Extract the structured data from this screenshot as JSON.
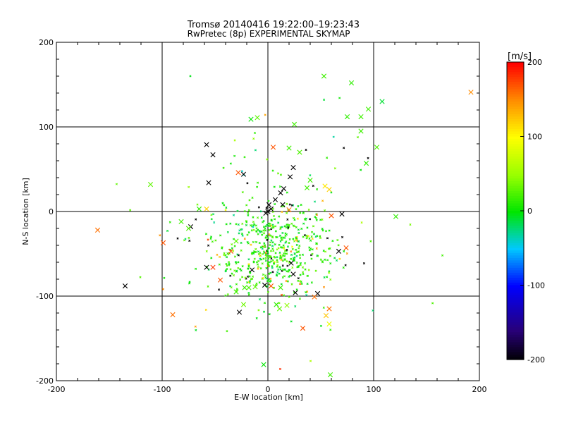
{
  "chart_data": {
    "type": "scatter",
    "title": "Tromsø 20140416 19:22:00–19:23:43",
    "subtitle": "RwPretec (8p) EXPERIMENTAL SKYMAP",
    "xlabel": "E-W location [km]",
    "ylabel": "N-S location [km]",
    "xlim": [
      -200,
      200
    ],
    "ylim": [
      -200,
      200
    ],
    "xticks": [
      -200,
      -100,
      0,
      100,
      200
    ],
    "yticks": [
      -200,
      -100,
      0,
      100,
      200
    ],
    "grid": "lines at -100, 0, 100",
    "colorbar": {
      "label": "[m/s]",
      "min": -200,
      "max": 200,
      "ticks": [
        200,
        100,
        0,
        -100,
        -200
      ]
    },
    "crosses": [
      [
        192,
        141,
        150
      ],
      [
        -161,
        -22,
        160
      ],
      [
        -99,
        -37,
        170
      ],
      [
        -90,
        -122,
        160
      ],
      [
        -28,
        46,
        170
      ],
      [
        -23,
        44,
        -200
      ],
      [
        -58,
        79,
        -200
      ],
      [
        -52,
        67,
        -200
      ],
      [
        -56,
        34,
        -200
      ],
      [
        -73,
        -18,
        -200
      ],
      [
        -58,
        -66,
        -200
      ],
      [
        -52,
        -66,
        180
      ],
      [
        -45,
        -81,
        170
      ],
      [
        -35,
        -47,
        175
      ],
      [
        -15,
        -69,
        -200
      ],
      [
        -27,
        -119,
        -200
      ],
      [
        5,
        76,
        170
      ],
      [
        24,
        52,
        -200
      ],
      [
        21,
        41,
        -200
      ],
      [
        12,
        22,
        -200
      ],
      [
        15,
        27,
        -200
      ],
      [
        7,
        14,
        -200
      ],
      [
        0,
        0,
        -200
      ],
      [
        3,
        3,
        -200
      ],
      [
        -2,
        -2,
        -200
      ],
      [
        1,
        8,
        -200
      ],
      [
        14,
        8,
        -200
      ],
      [
        20,
        2,
        160
      ],
      [
        60,
        -5,
        170
      ],
      [
        70,
        -3,
        -200
      ],
      [
        67,
        -47,
        -200
      ],
      [
        74,
        -43,
        170
      ],
      [
        22,
        -61,
        -200
      ],
      [
        24,
        -74,
        -200
      ],
      [
        26,
        -96,
        -200
      ],
      [
        47,
        -97,
        -200
      ],
      [
        44,
        -101,
        160
      ],
      [
        3,
        -88,
        170
      ],
      [
        -3,
        -87,
        -200
      ],
      [
        33,
        -138,
        170
      ],
      [
        58,
        -115,
        160
      ],
      [
        55,
        -123,
        125
      ],
      [
        58,
        -133,
        90
      ],
      [
        -135,
        -88,
        -200
      ],
      [
        -58,
        3,
        120
      ],
      [
        -10,
        111,
        30
      ],
      [
        54,
        30,
        110
      ],
      [
        58,
        26,
        120
      ],
      [
        -111,
        32,
        30
      ],
      [
        -16,
        109,
        0
      ],
      [
        53,
        160,
        20
      ],
      [
        79,
        152,
        15
      ],
      [
        108,
        130,
        -10
      ],
      [
        88,
        112,
        20
      ],
      [
        95,
        121,
        20
      ],
      [
        75,
        112,
        15
      ],
      [
        25,
        103,
        20
      ],
      [
        103,
        76,
        25
      ],
      [
        93,
        57,
        15
      ],
      [
        88,
        95,
        20
      ],
      [
        121,
        -6,
        15
      ],
      [
        40,
        37,
        20
      ],
      [
        -65,
        3,
        15
      ],
      [
        -18,
        -90,
        25
      ],
      [
        -12,
        -89,
        30
      ],
      [
        -22,
        -90,
        20
      ],
      [
        -30,
        -95,
        20
      ],
      [
        -23,
        -110,
        35
      ],
      [
        8,
        -110,
        15
      ],
      [
        12,
        -90,
        20
      ],
      [
        11,
        -115,
        30
      ],
      [
        18,
        -111,
        45
      ],
      [
        59,
        -193,
        20
      ],
      [
        -4,
        -181,
        0
      ],
      [
        37,
        28,
        20
      ],
      [
        30,
        70,
        25
      ],
      [
        20,
        75,
        20
      ],
      [
        -82,
        -12,
        20
      ],
      [
        -75,
        -20,
        25
      ],
      [
        -30,
        -35,
        30
      ]
    ],
    "dot_count": 650
  }
}
